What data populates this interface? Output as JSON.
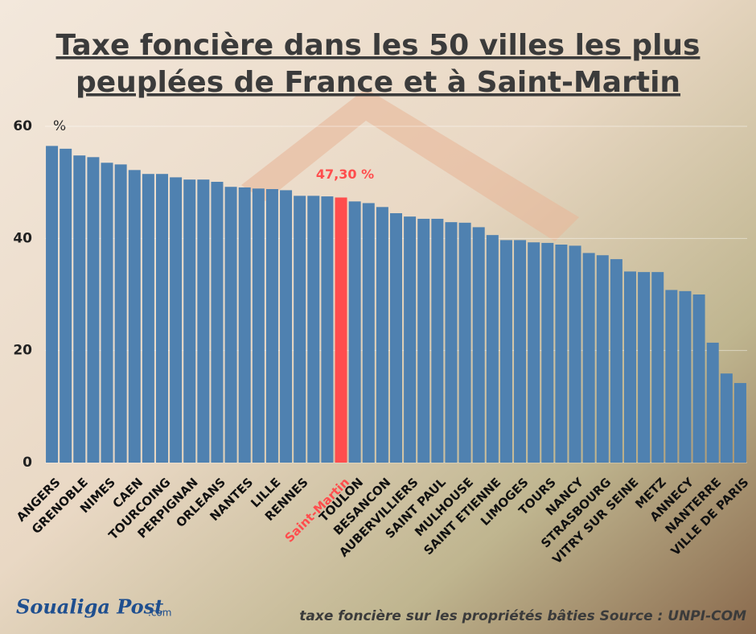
{
  "chart_data": {
    "type": "bar",
    "title": [
      "Taxe foncière dans les 50 villes les plus",
      "peuplées de France et à Saint-Martin"
    ],
    "ylabel": "%",
    "categories": [
      "ANGERS",
      null,
      "GRENOBLE",
      null,
      "NIMES",
      null,
      "CAEN",
      null,
      "TOURCOING",
      null,
      "PERPIGNAN",
      null,
      "ORLEANS",
      null,
      "NANTES",
      null,
      "LILLE",
      null,
      "RENNES",
      null,
      null,
      "Saint-Martin",
      "TOULON",
      null,
      "BESANCON",
      null,
      "AUBERVILLIERS",
      null,
      "SAINT PAUL",
      null,
      "MULHOUSE",
      null,
      "SAINT ETIENNE",
      null,
      "LIMOGES",
      null,
      "TOURS",
      null,
      "NANCY",
      null,
      "STRASBOURG",
      null,
      "VITRY SUR SEINE",
      null,
      "METZ",
      null,
      "ANNECY",
      null,
      "NANTERRE",
      null,
      "VILLE DE PARIS"
    ],
    "values": [
      56.5,
      56.0,
      54.8,
      54.5,
      53.5,
      53.2,
      52.2,
      51.5,
      51.5,
      50.9,
      50.5,
      50.5,
      50.1,
      49.2,
      49.1,
      48.9,
      48.8,
      48.6,
      47.6,
      47.6,
      47.5,
      47.3,
      46.6,
      46.3,
      45.6,
      44.5,
      43.9,
      43.5,
      43.5,
      42.9,
      42.8,
      42.0,
      40.6,
      39.7,
      39.7,
      39.3,
      39.2,
      38.9,
      38.7,
      37.4,
      37.0,
      36.3,
      34.1,
      34.0,
      34.0,
      30.8,
      30.6,
      30.0,
      21.4,
      15.9,
      14.2
    ],
    "value_labels": [
      null,
      null,
      null,
      null,
      null,
      null,
      null,
      null,
      null,
      null,
      null,
      null,
      null,
      null,
      null,
      null,
      null,
      null,
      null,
      null,
      null,
      "47,30 %",
      null,
      null,
      null,
      null,
      null,
      null,
      null,
      null,
      null,
      null,
      null,
      null,
      null,
      null,
      null,
      null,
      null,
      null,
      null,
      null,
      null,
      null,
      null,
      null,
      null,
      null,
      null,
      null,
      null
    ],
    "color": "#4f81b0",
    "highlight_color": "#ff4d4d",
    "highlight_category": "Saint-Martin",
    "ylim": [
      0,
      60
    ],
    "yticks": [
      0,
      20,
      40,
      60
    ],
    "grid": true,
    "source": "taxe foncière sur les propriétés bâties Source : UNPI-COM",
    "logo": {
      "name": "Soualiga Post",
      "suffix": ".com"
    }
  }
}
